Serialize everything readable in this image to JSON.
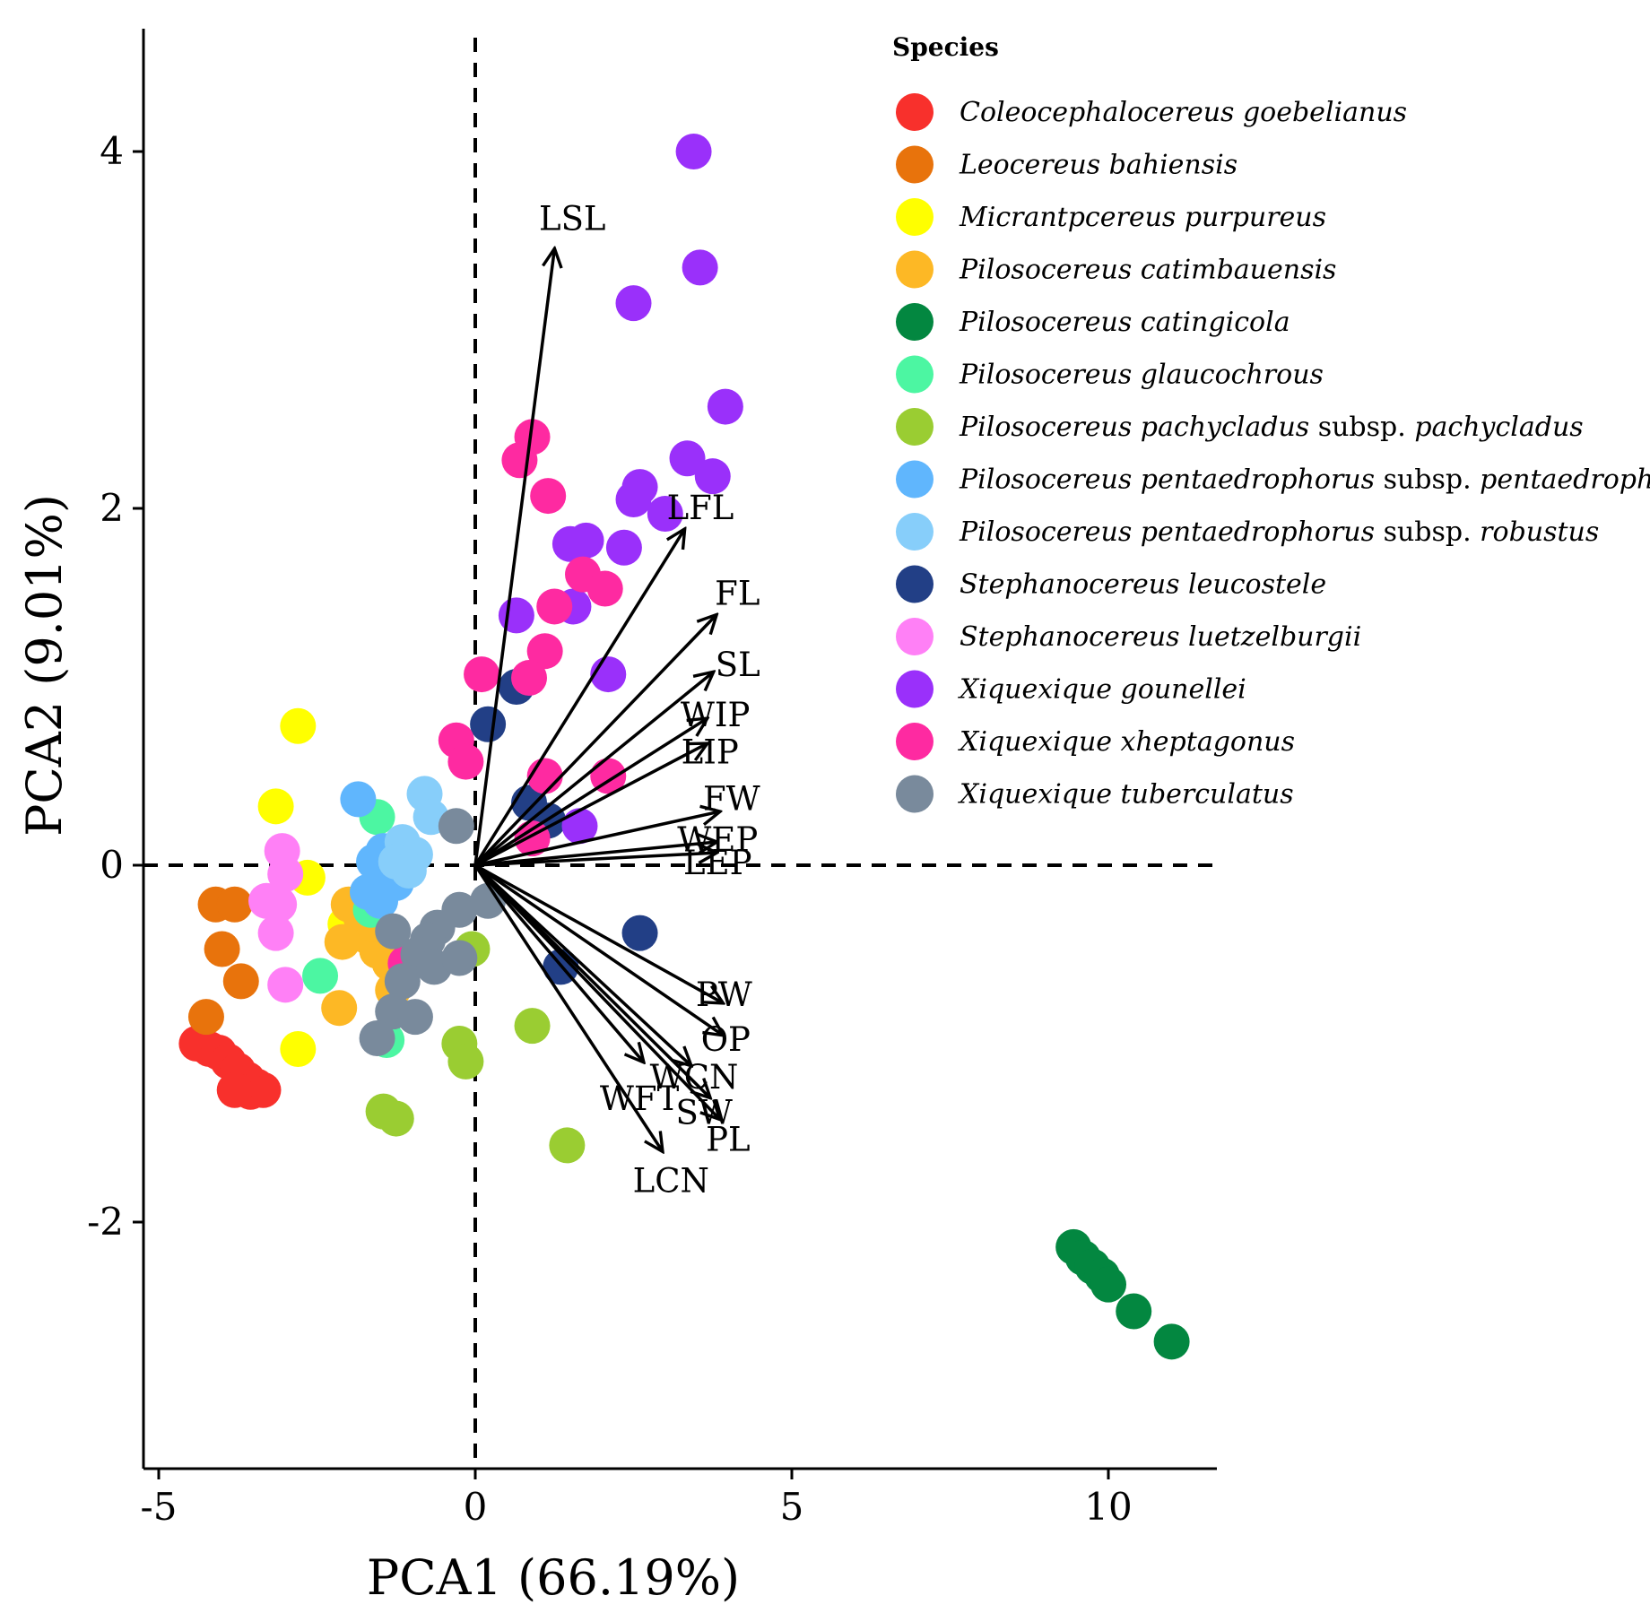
{
  "chart_data": {
    "type": "scatter",
    "title": "",
    "xlabel": "PCA1 (66.19%)",
    "ylabel": "PCA2 (9.01%)",
    "xlim": [
      -5.2,
      11.8
    ],
    "ylim": [
      -3.2,
      4.4
    ],
    "x_ticks": [
      -5,
      0,
      5,
      10
    ],
    "y_ticks": [
      -2,
      0,
      2,
      4
    ],
    "x_tick_labels": [
      "-5",
      "0",
      "5",
      "10"
    ],
    "y_tick_labels": [
      "-2",
      "0",
      "2",
      "4"
    ],
    "reference_lines": {
      "x": 0,
      "y": 0,
      "style": "dashed"
    },
    "legend": {
      "title": "Species",
      "placement": "top-right"
    },
    "loadings": [
      {
        "label": "LSL",
        "x": 1.25,
        "y": 3.45
      },
      {
        "label": "LFL",
        "x": 3.3,
        "y": 1.88
      },
      {
        "label": "FL",
        "x": 3.8,
        "y": 1.4
      },
      {
        "label": "SL",
        "x": 3.75,
        "y": 1.08
      },
      {
        "label": "WIP",
        "x": 3.65,
        "y": 0.82
      },
      {
        "label": "LIP",
        "x": 3.65,
        "y": 0.68
      },
      {
        "label": "FW",
        "x": 3.85,
        "y": 0.3
      },
      {
        "label": "WEP",
        "x": 3.8,
        "y": 0.13
      },
      {
        "label": "LEP",
        "x": 3.8,
        "y": 0.07
      },
      {
        "label": "PW",
        "x": 3.9,
        "y": -0.77
      },
      {
        "label": "OP",
        "x": 3.9,
        "y": -0.95
      },
      {
        "label": "WCN",
        "x": 3.4,
        "y": -1.12
      },
      {
        "label": "WFT",
        "x": 2.65,
        "y": -1.1
      },
      {
        "label": "SW",
        "x": 3.7,
        "y": -1.3
      },
      {
        "label": "PL",
        "x": 3.85,
        "y": -1.42
      },
      {
        "label": "LCN",
        "x": 2.95,
        "y": -1.6
      }
    ],
    "series": [
      {
        "name": "Coleocephalocereus goebelianus",
        "italic": "Coleocephalocereus goebelianus",
        "suffix": "",
        "color": "#F8302C",
        "points": [
          [
            -4.4,
            -1.0
          ],
          [
            -4.2,
            -1.03
          ],
          [
            -4.05,
            -1.05
          ],
          [
            -3.9,
            -1.1
          ],
          [
            -3.75,
            -1.15
          ],
          [
            -3.6,
            -1.2
          ],
          [
            -3.45,
            -1.24
          ],
          [
            -3.35,
            -1.26
          ],
          [
            -3.55,
            -1.27
          ],
          [
            -3.8,
            -1.26
          ]
        ]
      },
      {
        "name": "Leocereus bahiensis",
        "italic": "Leocereus bahiensis",
        "suffix": "",
        "color": "#E8730C",
        "points": [
          [
            -4.1,
            -0.22
          ],
          [
            -3.8,
            -0.22
          ],
          [
            -4.0,
            -0.47
          ],
          [
            -3.7,
            -0.65
          ],
          [
            -4.25,
            -0.85
          ]
        ]
      },
      {
        "name": "Micrantpcereus purpureus",
        "italic": "Micrantpcereus purpureus",
        "suffix": "",
        "color": "#FFFF00",
        "points": [
          [
            -2.8,
            0.78
          ],
          [
            -3.15,
            0.33
          ],
          [
            -2.65,
            -0.07
          ],
          [
            -2.8,
            -1.03
          ],
          [
            -2.05,
            -0.33
          ]
        ]
      },
      {
        "name": "Pilosocereus catimbauensis",
        "italic": "Pilosocereus catimbauensis",
        "suffix": "",
        "color": "#FDB825",
        "points": [
          [
            -2.0,
            -0.22
          ],
          [
            -1.8,
            -0.3
          ],
          [
            -1.7,
            -0.4
          ],
          [
            -2.1,
            -0.43
          ],
          [
            -1.55,
            -0.48
          ],
          [
            -1.35,
            -0.55
          ],
          [
            -1.2,
            -0.6
          ],
          [
            -1.3,
            -0.7
          ],
          [
            -2.15,
            -0.8
          ],
          [
            -1.6,
            -0.33
          ]
        ]
      },
      {
        "name": "Pilosocereus catingicola",
        "italic": "Pilosocereus catingicola",
        "suffix": "",
        "color": "#038740",
        "points": [
          [
            9.45,
            -2.14
          ],
          [
            9.6,
            -2.2
          ],
          [
            9.75,
            -2.25
          ],
          [
            9.9,
            -2.3
          ],
          [
            10.0,
            -2.35
          ],
          [
            10.4,
            -2.5
          ],
          [
            11.0,
            -2.67
          ]
        ]
      },
      {
        "name": "Pilosocereus glaucochrous",
        "italic": "Pilosocereus glaucochrous",
        "suffix": "",
        "color": "#4CF6A2",
        "points": [
          [
            -1.55,
            0.27
          ],
          [
            -1.65,
            -0.25
          ],
          [
            -2.45,
            -0.62
          ],
          [
            -1.4,
            -0.98
          ]
        ]
      },
      {
        "name": "Pilosocereus pachycladus subsp. pachycladus",
        "italic": "Pilosocereus pachycladus",
        "suffix": " subsp. pachycladus",
        "color": "#9ACD32",
        "points": [
          [
            -0.05,
            -0.47
          ],
          [
            0.9,
            -0.9
          ],
          [
            -0.25,
            -1.0
          ],
          [
            -0.15,
            -1.1
          ],
          [
            -1.45,
            -1.38
          ],
          [
            -1.25,
            -1.42
          ],
          [
            1.45,
            -1.57
          ]
        ]
      },
      {
        "name": "Pilosocereus pentaedrophorus subsp. pentaedrophorus",
        "italic": "Pilosocereus pentaedrophorus",
        "suffix": " subsp. pentaedrophorus",
        "color": "#60B6FD",
        "points": [
          [
            -1.85,
            0.37
          ],
          [
            -1.6,
            0.02
          ],
          [
            -1.45,
            0.08
          ],
          [
            -1.3,
            -0.05
          ],
          [
            -1.7,
            -0.15
          ],
          [
            -1.5,
            -0.2
          ],
          [
            -1.25,
            -0.1
          ]
        ]
      },
      {
        "name": "Pilosocereus pentaedrophorus subsp. robustus",
        "italic": "Pilosocereus pentaedrophorus",
        "suffix": " subsp. robustus",
        "color": "#87CEFA",
        "points": [
          [
            -0.8,
            0.4
          ],
          [
            -0.7,
            0.27
          ],
          [
            -1.15,
            0.13
          ],
          [
            -0.95,
            0.06
          ],
          [
            -1.25,
            0.02
          ],
          [
            -1.05,
            -0.03
          ]
        ]
      },
      {
        "name": "Stephanocereus leucostele",
        "italic": "Stephanocereus leucostele",
        "suffix": "",
        "color": "#223F86",
        "points": [
          [
            0.65,
            1.0
          ],
          [
            0.2,
            0.79
          ],
          [
            0.85,
            0.35
          ],
          [
            1.15,
            0.25
          ],
          [
            2.6,
            -0.38
          ],
          [
            1.35,
            -0.57
          ]
        ]
      },
      {
        "name": "Stephanocereus luetzelburgii",
        "italic": "Stephanocereus luetzelburgii",
        "suffix": "",
        "color": "#FF80F6",
        "points": [
          [
            -3.3,
            -0.2
          ],
          [
            -3.05,
            0.08
          ],
          [
            -3.0,
            -0.05
          ],
          [
            -3.1,
            -0.22
          ],
          [
            -3.15,
            -0.38
          ],
          [
            -3.0,
            -0.67
          ]
        ]
      },
      {
        "name": "Xiquexique gounellei",
        "italic": "Xiquexique gounellei",
        "suffix": "",
        "color": "#9A30FA",
        "points": [
          [
            3.45,
            4.0
          ],
          [
            3.55,
            3.35
          ],
          [
            2.5,
            3.15
          ],
          [
            3.95,
            2.57
          ],
          [
            3.35,
            2.28
          ],
          [
            3.75,
            2.18
          ],
          [
            2.6,
            2.12
          ],
          [
            2.5,
            2.05
          ],
          [
            3.0,
            1.97
          ],
          [
            1.5,
            1.8
          ],
          [
            1.75,
            1.82
          ],
          [
            2.35,
            1.78
          ],
          [
            1.55,
            1.45
          ],
          [
            0.65,
            1.4
          ],
          [
            2.1,
            1.07
          ],
          [
            1.65,
            0.22
          ]
        ]
      },
      {
        "name": "Xiquexique xheptagonus",
        "italic": "Xiquexique xheptagonus",
        "suffix": "",
        "color": "#FE2AA1",
        "points": [
          [
            0.9,
            2.4
          ],
          [
            0.7,
            2.27
          ],
          [
            1.15,
            2.07
          ],
          [
            1.7,
            1.63
          ],
          [
            2.05,
            1.55
          ],
          [
            1.25,
            1.45
          ],
          [
            1.1,
            1.2
          ],
          [
            0.85,
            1.05
          ],
          [
            0.1,
            1.07
          ],
          [
            -0.3,
            0.7
          ],
          [
            -0.15,
            0.58
          ],
          [
            1.1,
            0.5
          ],
          [
            2.1,
            0.5
          ],
          [
            0.9,
            0.15
          ],
          [
            -1.1,
            -0.55
          ]
        ]
      },
      {
        "name": "Xiquexique tuberculatus",
        "italic": "Xiquexique tuberculatus",
        "suffix": "",
        "color": "#798A9C",
        "points": [
          [
            -0.3,
            0.22
          ],
          [
            -0.25,
            -0.25
          ],
          [
            -0.6,
            -0.35
          ],
          [
            -0.75,
            -0.42
          ],
          [
            -0.9,
            -0.5
          ],
          [
            -0.65,
            -0.57
          ],
          [
            -0.25,
            -0.52
          ],
          [
            -1.15,
            -0.65
          ],
          [
            -1.3,
            -0.82
          ],
          [
            -0.95,
            -0.85
          ],
          [
            -1.55,
            -0.97
          ],
          [
            -1.3,
            -0.37
          ],
          [
            0.2,
            -0.2
          ]
        ]
      }
    ]
  }
}
